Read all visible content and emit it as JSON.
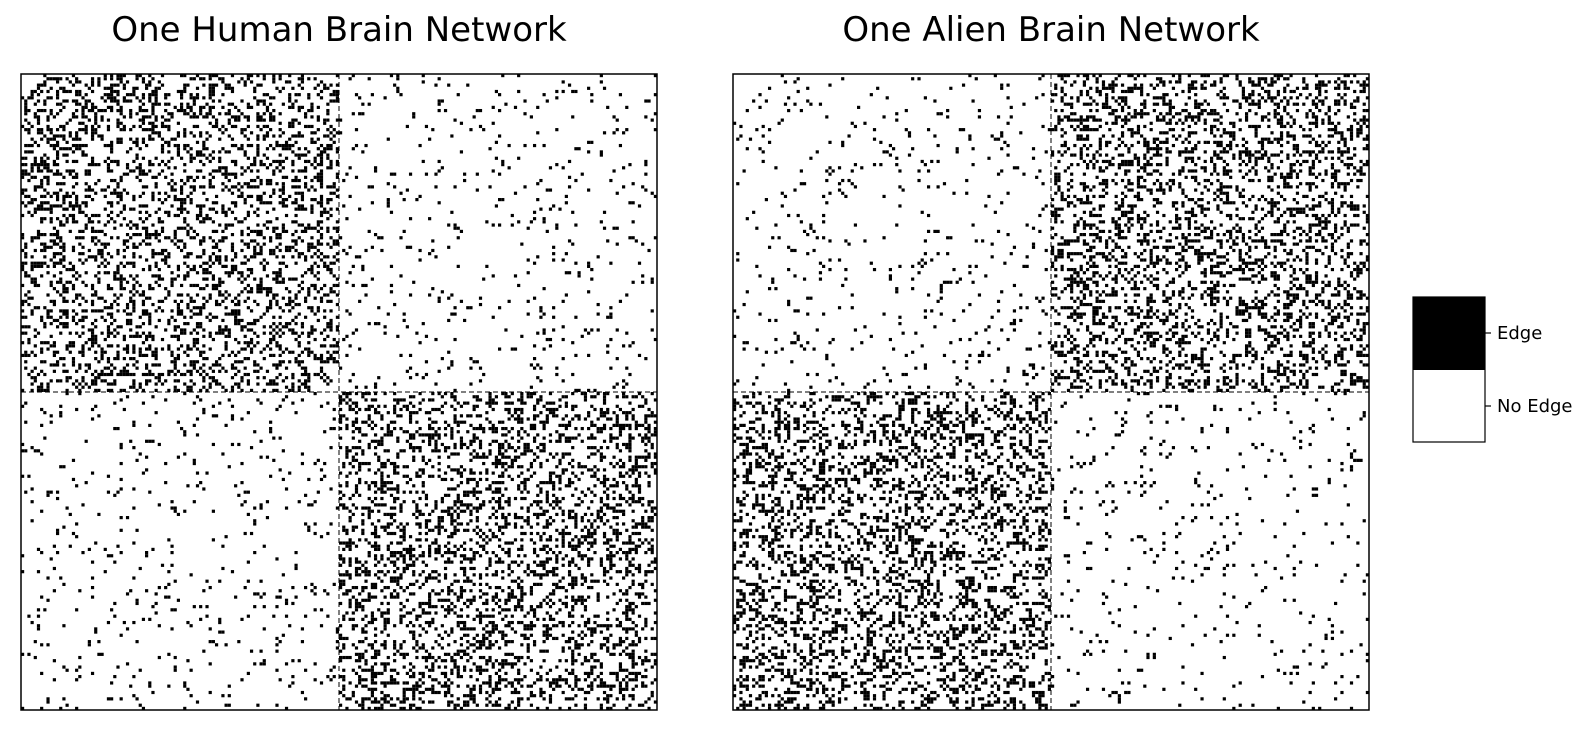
{
  "chart_data": [
    {
      "type": "heatmap",
      "title": "One Human Brain Network",
      "n_nodes": 200,
      "communities": [
        100,
        100
      ],
      "block_edge_probabilities": [
        [
          0.3,
          0.05
        ],
        [
          0.05,
          0.3
        ]
      ],
      "values": "binary adjacency matrix (0 = No Edge, 1 = Edge)",
      "xlabel": "",
      "ylabel": "",
      "grid": false
    },
    {
      "type": "heatmap",
      "title": "One Alien Brain Network",
      "n_nodes": 200,
      "communities": [
        100,
        100
      ],
      "block_edge_probabilities": [
        [
          0.05,
          0.3
        ],
        [
          0.3,
          0.05
        ]
      ],
      "values": "binary adjacency matrix (0 = No Edge, 1 = Edge)",
      "xlabel": "",
      "ylabel": "",
      "grid": false
    }
  ],
  "colorbar": {
    "labels": [
      "Edge",
      "No Edge"
    ],
    "colors": [
      "#000000",
      "#ffffff"
    ]
  },
  "colors": {
    "edge": "#000000",
    "no_edge": "#ffffff",
    "divider": "#000000"
  }
}
